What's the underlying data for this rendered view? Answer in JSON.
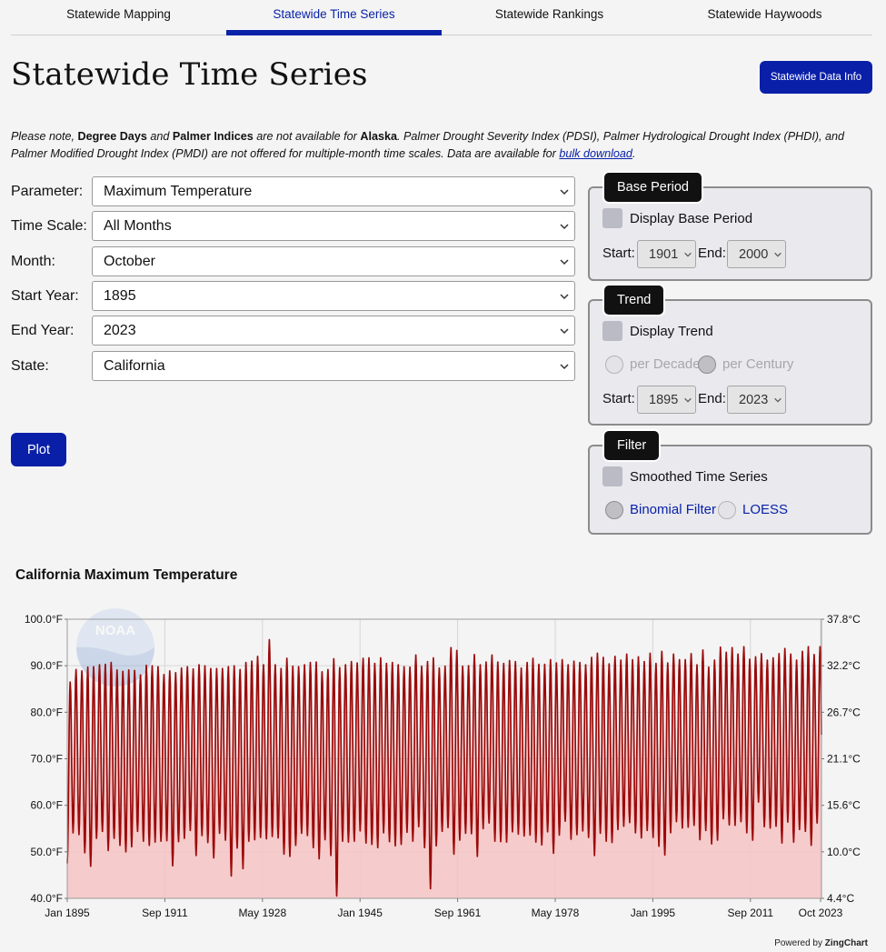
{
  "tabs": [
    {
      "label": "Statewide Mapping",
      "active": false
    },
    {
      "label": "Statewide Time Series",
      "active": true
    },
    {
      "label": "Statewide Rankings",
      "active": false
    },
    {
      "label": "Statewide Haywoods",
      "active": false
    }
  ],
  "page_title": "Statewide Time Series",
  "info_button": "Statewide Data Info",
  "note": {
    "p1": "Please note, ",
    "b1": "Degree Days",
    "p2": " and ",
    "b2": "Palmer Indices",
    "p3": " are not available for ",
    "b3": "Alaska",
    "p4": ". Palmer Drought Severity Index (PDSI), Palmer Hydrological Drought Index (PHDI), and Palmer Modified Drought Index (PMDI) are not offered for multiple-month time scales. Data are available for ",
    "link": "bulk download",
    "p5": "."
  },
  "form": {
    "parameter": {
      "label": "Parameter:",
      "value": "Maximum Temperature"
    },
    "time_scale": {
      "label": "Time Scale:",
      "value": "All Months"
    },
    "month": {
      "label": "Month:",
      "value": "October"
    },
    "start_year": {
      "label": "Start Year:",
      "value": "1895"
    },
    "end_year": {
      "label": "End Year:",
      "value": "2023"
    },
    "state": {
      "label": "State:",
      "value": "California"
    }
  },
  "plot_button": "Plot",
  "base_period": {
    "title": "Base Period",
    "checkbox": "Display Base Period",
    "start_label": "Start:",
    "start": "1901",
    "end_label": "End:",
    "end": "2000"
  },
  "trend": {
    "title": "Trend",
    "checkbox": "Display Trend",
    "per_decade": "per Decade",
    "per_century": "per Century",
    "start_label": "Start:",
    "start": "1895",
    "end_label": "End:",
    "end": "2023"
  },
  "filter": {
    "title": "Filter",
    "checkbox": "Smoothed Time Series",
    "binomial": "Binomial Filter",
    "loess": "LOESS"
  },
  "chart_title": "California Maximum Temperature",
  "watermark": "NOAA",
  "powered_prefix": "Powered by ",
  "powered_brand": "ZingChart",
  "colors": {
    "accent": "#0a1fa8",
    "series_line": "#9b0a0a",
    "series_fill": "#f6c3c3"
  },
  "chart_data": {
    "type": "area",
    "title": "California Maximum Temperature",
    "x_start": "Jan 1895",
    "x_end": "Oct 2023",
    "x_ticks": [
      "Jan 1895",
      "Sep 1911",
      "May 1928",
      "Jan 1945",
      "Sep 1961",
      "May 1978",
      "Jan 1995",
      "Sep 2011",
      "Oct 2023"
    ],
    "y_left_ticks": [
      "100.0°F",
      "90.0°F",
      "80.0°F",
      "70.0°F",
      "60.0°F",
      "50.0°F",
      "40.0°F"
    ],
    "y_right_ticks": [
      "37.8°C",
      "32.2°C",
      "26.7°C",
      "21.1°C",
      "15.6°C",
      "10.0°C",
      "4.4°C"
    ],
    "ylim": [
      40,
      100
    ],
    "grid": true,
    "series": [
      {
        "name": "Maximum Temperature",
        "annual_peaks_F": [
          86.5,
          89.2,
          88.9,
          89.7,
          89.8,
          90.2,
          90.3,
          90.7,
          89.1,
          88.8,
          89.1,
          89.0,
          88.0,
          90.1,
          90.0,
          89.8,
          88.1,
          88.9,
          88.5,
          89.5,
          89.8,
          89.3,
          90.2,
          90.0,
          89.4,
          89.4,
          89.4,
          89.8,
          90.0,
          89.2,
          90.7,
          91.0,
          92.0,
          90.2,
          95.6,
          90.2,
          89.4,
          91.6,
          89.9,
          89.8,
          90.2,
          90.7,
          90.8,
          88.7,
          89.2,
          91.5,
          89.6,
          90.2,
          90.9,
          90.6,
          91.6,
          91.7,
          90.5,
          91.7,
          90.5,
          90.7,
          90.2,
          89.8,
          89.7,
          92.3,
          89.9,
          90.9,
          91.7,
          89.5,
          89.9,
          93.9,
          93.3,
          89.9,
          90.0,
          92.4,
          90.2,
          90.8,
          92.3,
          90.8,
          90.5,
          91.1,
          90.9,
          89.5,
          90.7,
          91.6,
          90.3,
          90.3,
          91.3,
          90.6,
          91.3,
          90.2,
          91.0,
          90.7,
          90.2,
          91.8,
          92.7,
          91.8,
          90.4,
          92.0,
          91.2,
          92.5,
          91.3,
          91.9,
          90.9,
          92.7,
          90.5,
          93.1,
          90.6,
          92.5,
          91.3,
          91.3,
          92.6,
          90.2,
          93.4,
          89.7,
          91.2,
          94.0,
          92.9,
          93.9,
          92.5,
          94.1,
          91.4,
          91.9,
          92.6,
          91.2,
          91.7,
          92.6,
          93.7,
          92.5,
          91.2,
          93.1,
          94.1,
          92.4,
          94.1
        ],
        "annual_troughs_F": [
          47.5,
          54.1,
          53.7,
          49.8,
          46.9,
          52.9,
          54.4,
          50.3,
          52.9,
          51.4,
          50.0,
          51.1,
          54.4,
          52.3,
          51.4,
          52.1,
          52.3,
          52.4,
          47.0,
          52.2,
          52.9,
          54.6,
          49.2,
          53.5,
          52.0,
          48.7,
          54.0,
          52.5,
          44.8,
          50.8,
          46.4,
          52.3,
          52.6,
          53.1,
          52.8,
          53.3,
          53.0,
          49.5,
          49.0,
          51.4,
          54.0,
          53.5,
          50.9,
          48.5,
          52.6,
          49.2,
          40.5,
          52.3,
          52.1,
          52.3,
          54.5,
          51.9,
          51.6,
          50.9,
          54.1,
          52.2,
          51.3,
          51.6,
          54.2,
          52.3,
          55.4,
          50.9,
          42.1,
          51.3,
          54.4,
          55.2,
          49.5,
          52.5,
          54.0,
          53.9,
          49.0,
          55.0,
          56.2,
          52.3,
          52.2,
          52.1,
          54.3,
          53.8,
          53.4,
          53.6,
          52.1,
          51.5,
          54.3,
          49.7,
          53.6,
          56.6,
          52.7,
          53.7,
          54.5,
          53.1,
          49.2,
          54.0,
          52.3,
          52.0,
          54.8,
          55.5,
          56.3,
          54.1,
          53.0,
          54.6,
          53.1,
          51.2,
          49.3,
          54.1,
          56.5,
          55.1,
          55.3,
          55.7,
          52.6,
          54.6,
          51.7,
          52.5,
          57.1,
          55.8,
          55.7,
          56.5,
          54.1,
          52.5,
          60.7,
          55.4,
          55.1,
          55.5,
          51.9,
          56.4,
          52.1,
          54.8,
          54.4,
          51.4,
          56.2
        ]
      }
    ]
  }
}
